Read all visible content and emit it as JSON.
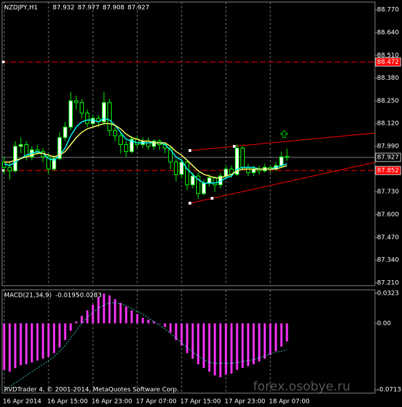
{
  "chart_data": {
    "type": "candlestick",
    "symbol": "NZDJPY,H1",
    "categories": [
      "16 Apr 2014",
      null,
      null,
      null,
      null,
      null,
      null,
      null,
      "16 Apr 15:00",
      null,
      null,
      null,
      null,
      null,
      null,
      null,
      "16 Apr 23:00",
      null,
      null,
      null,
      null,
      null,
      null,
      null,
      "17 Apr 07:00",
      null,
      null,
      null,
      null,
      null,
      null,
      null,
      "17 Apr 15:00",
      null,
      null,
      null,
      null,
      null,
      null,
      null,
      "17 Apr 23:00",
      null,
      null,
      null,
      null,
      null,
      null,
      null,
      "18 Apr 07:00",
      null,
      null,
      null
    ],
    "candles": [
      [
        87.9,
        87.93,
        87.83,
        87.87
      ],
      [
        87.87,
        87.9,
        87.8,
        87.85
      ],
      [
        87.85,
        88.02,
        87.84,
        87.99
      ],
      [
        87.99,
        88.04,
        87.95,
        88.0
      ],
      [
        88.0,
        88.02,
        87.91,
        87.93
      ],
      [
        87.93,
        87.99,
        87.91,
        87.97
      ],
      [
        87.97,
        88.0,
        87.94,
        87.96
      ],
      [
        87.96,
        87.98,
        87.9,
        87.93
      ],
      [
        87.93,
        87.95,
        87.83,
        87.86
      ],
      [
        87.86,
        87.94,
        87.85,
        87.92
      ],
      [
        87.92,
        88.07,
        87.91,
        88.04
      ],
      [
        88.04,
        88.13,
        88.02,
        88.1
      ],
      [
        88.1,
        88.3,
        88.08,
        88.25
      ],
      [
        88.25,
        88.28,
        88.2,
        88.24
      ],
      [
        88.24,
        88.26,
        88.15,
        88.18
      ],
      [
        88.18,
        88.2,
        88.1,
        88.12
      ],
      [
        88.12,
        88.17,
        88.1,
        88.15
      ],
      [
        88.15,
        88.17,
        88.1,
        88.13
      ],
      [
        88.13,
        88.3,
        88.11,
        88.24
      ],
      [
        88.24,
        88.26,
        88.05,
        88.08
      ],
      [
        88.08,
        88.1,
        88.02,
        88.05
      ],
      [
        88.05,
        88.07,
        87.95,
        88.0
      ],
      [
        88.0,
        88.02,
        87.93,
        87.96
      ],
      [
        87.96,
        88.05,
        87.95,
        88.03
      ],
      [
        88.03,
        88.05,
        87.98,
        88.0
      ],
      [
        88.0,
        88.04,
        87.98,
        88.02
      ],
      [
        88.02,
        88.04,
        87.97,
        87.99
      ],
      [
        87.99,
        88.03,
        87.97,
        88.02
      ],
      [
        88.02,
        88.03,
        87.97,
        88.0
      ],
      [
        88.0,
        88.01,
        87.95,
        87.98
      ],
      [
        87.98,
        87.99,
        87.86,
        87.9
      ],
      [
        87.9,
        87.92,
        87.79,
        87.83
      ],
      [
        87.83,
        87.92,
        87.81,
        87.9
      ],
      [
        87.9,
        87.91,
        87.74,
        87.77
      ],
      [
        87.77,
        87.84,
        87.75,
        87.82
      ],
      [
        87.82,
        87.84,
        87.69,
        87.72
      ],
      [
        87.72,
        87.8,
        87.71,
        87.78
      ],
      [
        87.78,
        87.83,
        87.76,
        87.81
      ],
      [
        87.81,
        87.82,
        87.73,
        87.77
      ],
      [
        87.77,
        87.84,
        87.75,
        87.82
      ],
      [
        87.82,
        87.88,
        87.8,
        87.86
      ],
      [
        87.86,
        87.88,
        87.81,
        87.83
      ],
      [
        87.83,
        88.0,
        87.82,
        87.98
      ],
      [
        87.98,
        87.99,
        87.85,
        87.87
      ],
      [
        87.87,
        87.89,
        87.82,
        87.84
      ],
      [
        87.84,
        87.88,
        87.82,
        87.86
      ],
      [
        87.86,
        87.88,
        87.83,
        87.85
      ],
      [
        87.85,
        87.89,
        87.84,
        87.87
      ],
      [
        87.87,
        87.88,
        87.84,
        87.86
      ],
      [
        87.86,
        87.9,
        87.85,
        87.88
      ],
      [
        87.88,
        87.96,
        87.87,
        87.93
      ],
      [
        87.932,
        87.977,
        87.908,
        87.927
      ]
    ],
    "ylim": [
      87.194,
      88.814
    ],
    "yticks": [
      {
        "value": 88.77,
        "label": "88.770"
      },
      {
        "value": 88.64,
        "label": "88.640"
      },
      {
        "value": 88.51,
        "label": "88.510"
      },
      {
        "value": 88.38,
        "label": "88.380"
      },
      {
        "value": 88.25,
        "label": "88.250"
      },
      {
        "value": 88.12,
        "label": "88.120"
      },
      {
        "value": 87.99,
        "label": "87.990"
      },
      {
        "value": 87.86,
        "label": "87.860"
      },
      {
        "value": 87.73,
        "label": "87.730"
      },
      {
        "value": 87.6,
        "label": "87.600"
      },
      {
        "value": 87.47,
        "label": "87.470"
      },
      {
        "value": 87.34,
        "label": "87.340"
      },
      {
        "value": 87.21,
        "label": "87.210"
      }
    ],
    "grid": true,
    "bull_color": "#ffffff",
    "bear_color": "#000000",
    "wick_color": "#00ff00",
    "ma_lines": [
      {
        "color": "#00ffff",
        "values": [
          87.89,
          87.88,
          87.9,
          87.92,
          87.94,
          87.95,
          87.96,
          87.95,
          87.92,
          87.91,
          87.94,
          87.98,
          88.05,
          88.1,
          88.13,
          88.14,
          88.14,
          88.13,
          88.15,
          88.14,
          88.11,
          88.07,
          88.03,
          88.02,
          88.01,
          88.01,
          88.01,
          88.01,
          88.01,
          88.0,
          87.97,
          87.93,
          87.91,
          87.86,
          87.83,
          87.8,
          87.78,
          87.78,
          87.78,
          87.79,
          87.81,
          87.82,
          87.86,
          87.87,
          87.87,
          87.87,
          87.86,
          87.86,
          87.86,
          87.87,
          87.88,
          87.89
        ]
      },
      {
        "color": "#ffff66",
        "values": [
          87.9,
          87.9,
          87.91,
          87.92,
          87.93,
          87.94,
          87.95,
          87.95,
          87.94,
          87.93,
          87.94,
          87.96,
          88.0,
          88.04,
          88.07,
          88.09,
          88.1,
          88.11,
          88.12,
          88.12,
          88.11,
          88.09,
          88.06,
          88.04,
          88.03,
          88.02,
          88.02,
          88.01,
          88.01,
          88.01,
          87.99,
          87.96,
          87.94,
          87.91,
          87.88,
          87.85,
          87.83,
          87.82,
          87.81,
          87.81,
          87.82,
          87.83,
          87.85,
          87.86,
          87.86,
          87.86,
          87.86,
          87.86,
          87.86,
          87.86,
          87.87,
          87.88
        ]
      }
    ],
    "price_lines": [
      {
        "value": 88.472,
        "color": "#ff0000",
        "dashed": true
      },
      {
        "value": 87.927,
        "color": "#808080",
        "dashed": false
      },
      {
        "value": 87.852,
        "color": "#ff0000",
        "dashed": true
      }
    ],
    "trendlines": [
      {
        "color": "#ff0000",
        "points": [
          [
            33.5,
            87.966
          ],
          [
            41.5,
            87.99
          ]
        ]
      },
      {
        "color": "#ff0000",
        "points": [
          [
            33.5,
            87.665
          ],
          [
            37.5,
            87.693
          ]
        ]
      }
    ],
    "arrow": {
      "color": "#00cc00",
      "x": 50.5,
      "y": 88.06
    },
    "macd": {
      "label": "MACD(21,34,9)",
      "ylim": [
        -0.075,
        0.036
      ],
      "yticks": [
        0.0323,
        {
          "value": 0,
          "label": "0.00"
        },
        -0.0713
      ],
      "histogram": {
        "color": "#ff33ff",
        "values": [
          -0.05,
          -0.052,
          -0.048,
          -0.045,
          -0.044,
          -0.042,
          -0.04,
          -0.038,
          -0.036,
          -0.032,
          -0.026,
          -0.018,
          -0.008,
          0.002,
          0.008,
          0.014,
          0.02,
          0.028,
          0.032,
          0.03,
          0.026,
          0.022,
          0.018,
          0.014,
          0.01,
          0.006,
          0.004,
          0.002,
          0.0,
          -0.004,
          -0.01,
          -0.018,
          -0.024,
          -0.032,
          -0.038,
          -0.044,
          -0.048,
          -0.052,
          -0.056,
          -0.058,
          -0.055,
          -0.054,
          -0.05,
          -0.048,
          -0.046,
          -0.044,
          -0.041,
          -0.038,
          -0.034,
          -0.03,
          -0.025,
          -0.0195
        ]
      },
      "signal": {
        "color": "#33cccc",
        "values": [
          -0.072,
          -0.068,
          -0.064,
          -0.06,
          -0.056,
          -0.052,
          -0.048,
          -0.044,
          -0.04,
          -0.036,
          -0.03,
          -0.024,
          -0.016,
          -0.008,
          0.0,
          0.006,
          0.012,
          0.016,
          0.02,
          0.022,
          0.022,
          0.021,
          0.019,
          0.016,
          0.013,
          0.01,
          0.006,
          0.002,
          -0.002,
          -0.006,
          -0.011,
          -0.016,
          -0.021,
          -0.026,
          -0.031,
          -0.035,
          -0.039,
          -0.042,
          -0.043,
          -0.043,
          -0.043,
          -0.043,
          -0.042,
          -0.041,
          -0.04,
          -0.039,
          -0.037,
          -0.035,
          -0.033,
          -0.031,
          -0.03,
          -0.0283
        ]
      }
    },
    "footer": "RVDTrader 4, © 2001-2014, MetaQuotes Software Corp.",
    "watermark": "forex.osobye.ru"
  }
}
